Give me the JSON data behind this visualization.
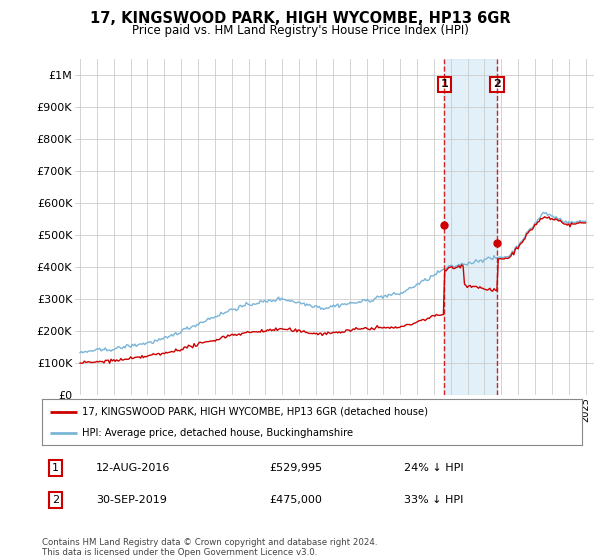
{
  "title": "17, KINGSWOOD PARK, HIGH WYCOMBE, HP13 6GR",
  "subtitle": "Price paid vs. HM Land Registry's House Price Index (HPI)",
  "ylim": [
    0,
    1050000
  ],
  "yticks": [
    0,
    100000,
    200000,
    300000,
    400000,
    500000,
    600000,
    700000,
    800000,
    900000,
    1000000
  ],
  "ytick_labels": [
    "£0",
    "£100K",
    "£200K",
    "£300K",
    "£400K",
    "£500K",
    "£600K",
    "£700K",
    "£800K",
    "£900K",
    "£1M"
  ],
  "hpi_color": "#7ab5d8",
  "price_color": "#cc0000",
  "vline_color": "#cc0000",
  "shade_color": "#d0e8f5",
  "transaction_1": {
    "date_num": 2016.62,
    "price": 529995
  },
  "transaction_2": {
    "date_num": 2019.75,
    "price": 475000
  },
  "legend_entry_1": "17, KINGSWOOD PARK, HIGH WYCOMBE, HP13 6GR (detached house)",
  "legend_entry_2": "HPI: Average price, detached house, Buckinghamshire",
  "table_rows": [
    {
      "num": "1",
      "date": "12-AUG-2016",
      "price": "£529,995",
      "pct": "24% ↓ HPI"
    },
    {
      "num": "2",
      "date": "30-SEP-2019",
      "price": "£475,000",
      "pct": "33% ↓ HPI"
    }
  ],
  "footer": "Contains HM Land Registry data © Crown copyright and database right 2024.\nThis data is licensed under the Open Government Licence v3.0.",
  "background_color": "#ffffff",
  "grid_color": "#cccccc",
  "xlim_left": 1994.7,
  "xlim_right": 2025.5
}
